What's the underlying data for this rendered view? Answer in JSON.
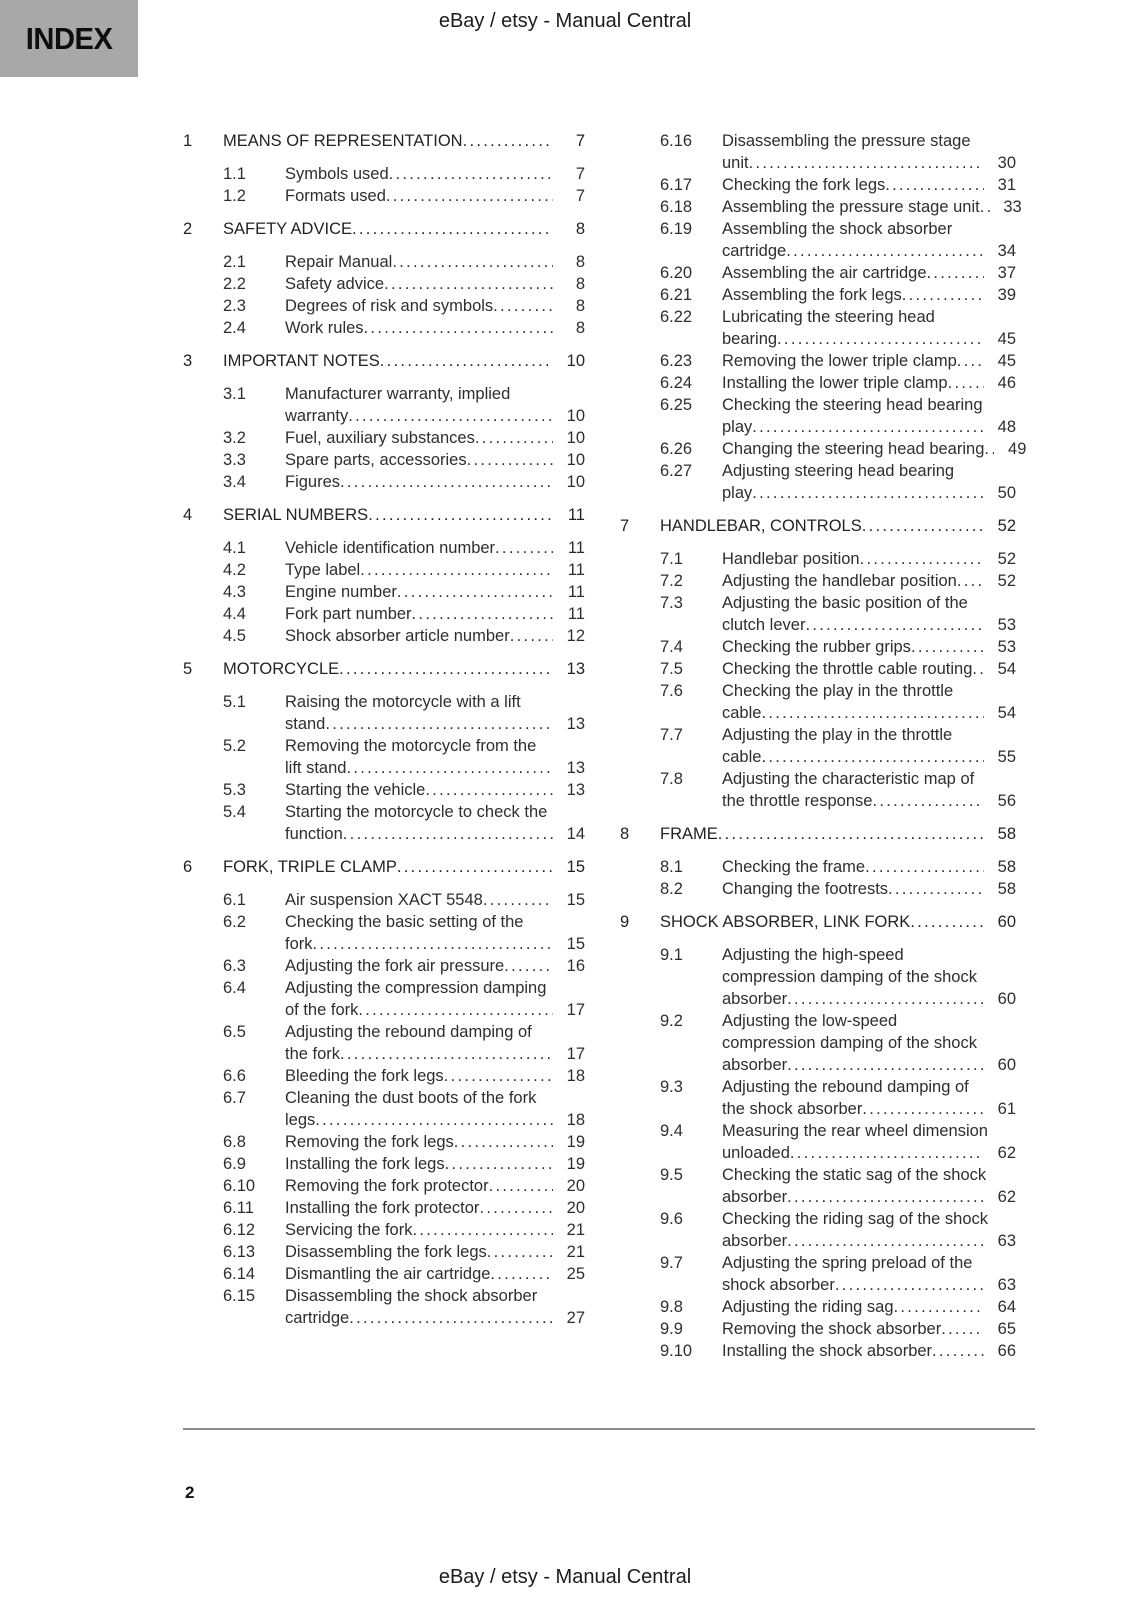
{
  "header": {
    "index_label": "INDEX",
    "title": "eBay / etsy - Manual Central"
  },
  "footer": {
    "title": "eBay / etsy - Manual Central"
  },
  "page": {
    "number": "2"
  },
  "colors": {
    "index_box_bg": "#a8a8a8",
    "body_text": "#2e2e2e",
    "rule": "#8a8a8a"
  },
  "toc": {
    "left_column": [
      {
        "level": "chapter",
        "num": "1",
        "lines": [
          "MEANS OF REPRESENTATION"
        ],
        "page": "7"
      },
      {
        "level": "section",
        "num": "1.1",
        "lines": [
          "Symbols used"
        ],
        "page": "7"
      },
      {
        "level": "section",
        "num": "1.2",
        "lines": [
          "Formats used"
        ],
        "page": "7"
      },
      {
        "level": "chapter",
        "num": "2",
        "lines": [
          "SAFETY ADVICE"
        ],
        "page": "8"
      },
      {
        "level": "section",
        "num": "2.1",
        "lines": [
          "Repair Manual"
        ],
        "page": "8"
      },
      {
        "level": "section",
        "num": "2.2",
        "lines": [
          "Safety advice"
        ],
        "page": "8"
      },
      {
        "level": "section",
        "num": "2.3",
        "lines": [
          "Degrees of risk and symbols"
        ],
        "page": "8"
      },
      {
        "level": "section",
        "num": "2.4",
        "lines": [
          "Work rules"
        ],
        "page": "8"
      },
      {
        "level": "chapter",
        "num": "3",
        "lines": [
          "IMPORTANT NOTES"
        ],
        "page": "10"
      },
      {
        "level": "section",
        "num": "3.1",
        "lines": [
          "Manufacturer warranty, implied",
          "warranty"
        ],
        "page": "10"
      },
      {
        "level": "section",
        "num": "3.2",
        "lines": [
          "Fuel, auxiliary substances"
        ],
        "page": "10"
      },
      {
        "level": "section",
        "num": "3.3",
        "lines": [
          "Spare parts, accessories"
        ],
        "page": "10"
      },
      {
        "level": "section",
        "num": "3.4",
        "lines": [
          "Figures"
        ],
        "page": "10"
      },
      {
        "level": "chapter",
        "num": "4",
        "lines": [
          "SERIAL NUMBERS"
        ],
        "page": "11"
      },
      {
        "level": "section",
        "num": "4.1",
        "lines": [
          "Vehicle identification number"
        ],
        "page": "11"
      },
      {
        "level": "section",
        "num": "4.2",
        "lines": [
          "Type label"
        ],
        "page": "11"
      },
      {
        "level": "section",
        "num": "4.3",
        "lines": [
          "Engine number"
        ],
        "page": "11"
      },
      {
        "level": "section",
        "num": "4.4",
        "lines": [
          "Fork part number"
        ],
        "page": "11"
      },
      {
        "level": "section",
        "num": "4.5",
        "lines": [
          "Shock absorber article number"
        ],
        "page": "12"
      },
      {
        "level": "chapter",
        "num": "5",
        "lines": [
          "MOTORCYCLE"
        ],
        "page": "13"
      },
      {
        "level": "section",
        "num": "5.1",
        "lines": [
          "Raising the motorcycle with a lift",
          "stand"
        ],
        "page": "13"
      },
      {
        "level": "section",
        "num": "5.2",
        "lines": [
          "Removing the motorcycle from the",
          "lift stand"
        ],
        "page": "13"
      },
      {
        "level": "section",
        "num": "5.3",
        "lines": [
          "Starting the vehicle"
        ],
        "page": "13"
      },
      {
        "level": "section",
        "num": "5.4",
        "lines": [
          "Starting the motorcycle to check the",
          "function"
        ],
        "page": "14"
      },
      {
        "level": "chapter",
        "num": "6",
        "lines": [
          "FORK, TRIPLE CLAMP"
        ],
        "page": "15"
      },
      {
        "level": "section",
        "num": "6.1",
        "lines": [
          "Air suspension XACT 5548"
        ],
        "page": "15"
      },
      {
        "level": "section",
        "num": "6.2",
        "lines": [
          "Checking the basic setting of the",
          "fork"
        ],
        "page": "15"
      },
      {
        "level": "section",
        "num": "6.3",
        "lines": [
          "Adjusting the fork air pressure"
        ],
        "page": "16"
      },
      {
        "level": "section",
        "num": "6.4",
        "lines": [
          "Adjusting the compression damping",
          "of the fork"
        ],
        "page": "17"
      },
      {
        "level": "section",
        "num": "6.5",
        "lines": [
          "Adjusting the rebound damping of",
          "the fork"
        ],
        "page": "17"
      },
      {
        "level": "section",
        "num": "6.6",
        "lines": [
          "Bleeding the fork legs"
        ],
        "page": "18"
      },
      {
        "level": "section",
        "num": "6.7",
        "lines": [
          "Cleaning the dust boots of the fork",
          "legs"
        ],
        "page": "18"
      },
      {
        "level": "section",
        "num": "6.8",
        "lines": [
          "Removing the fork legs"
        ],
        "page": "19"
      },
      {
        "level": "section",
        "num": "6.9",
        "lines": [
          "Installing the fork legs"
        ],
        "page": "19"
      },
      {
        "level": "section",
        "num": "6.10",
        "lines": [
          "Removing the fork protector"
        ],
        "page": "20"
      },
      {
        "level": "section",
        "num": "6.11",
        "lines": [
          "Installing the fork protector"
        ],
        "page": "20"
      },
      {
        "level": "section",
        "num": "6.12",
        "lines": [
          "Servicing the fork"
        ],
        "page": "21"
      },
      {
        "level": "section",
        "num": "6.13",
        "lines": [
          "Disassembling the fork legs"
        ],
        "page": "21"
      },
      {
        "level": "section",
        "num": "6.14",
        "lines": [
          "Dismantling the air cartridge"
        ],
        "page": "25"
      },
      {
        "level": "section",
        "num": "6.15",
        "lines": [
          "Disassembling the shock absorber",
          "cartridge"
        ],
        "page": "27"
      }
    ],
    "right_column": [
      {
        "level": "section",
        "num": "6.16",
        "lines": [
          "Disassembling the pressure stage",
          "unit"
        ],
        "page": "30"
      },
      {
        "level": "section",
        "num": "6.17",
        "lines": [
          "Checking the fork legs"
        ],
        "page": "31"
      },
      {
        "level": "section",
        "num": "6.18",
        "lines": [
          "Assembling the pressure stage unit"
        ],
        "page": "33"
      },
      {
        "level": "section",
        "num": "6.19",
        "lines": [
          "Assembling the shock absorber",
          "cartridge"
        ],
        "page": "34"
      },
      {
        "level": "section",
        "num": "6.20",
        "lines": [
          "Assembling the air cartridge"
        ],
        "page": "37"
      },
      {
        "level": "section",
        "num": "6.21",
        "lines": [
          "Assembling the fork legs"
        ],
        "page": "39"
      },
      {
        "level": "section",
        "num": "6.22",
        "lines": [
          "Lubricating the steering head",
          "bearing"
        ],
        "page": "45"
      },
      {
        "level": "section",
        "num": "6.23",
        "lines": [
          "Removing the lower triple clamp"
        ],
        "page": "45"
      },
      {
        "level": "section",
        "num": "6.24",
        "lines": [
          "Installing the lower triple clamp"
        ],
        "page": "46"
      },
      {
        "level": "section",
        "num": "6.25",
        "lines": [
          "Checking the steering head bearing",
          "play"
        ],
        "page": "48"
      },
      {
        "level": "section",
        "num": "6.26",
        "lines": [
          "Changing the steering head bearing"
        ],
        "page": "49"
      },
      {
        "level": "section",
        "num": "6.27",
        "lines": [
          "Adjusting steering head bearing",
          "play"
        ],
        "page": "50"
      },
      {
        "level": "chapter",
        "num": "7",
        "lines": [
          "HANDLEBAR, CONTROLS"
        ],
        "page": "52"
      },
      {
        "level": "section",
        "num": "7.1",
        "lines": [
          "Handlebar position"
        ],
        "page": "52"
      },
      {
        "level": "section",
        "num": "7.2",
        "lines": [
          "Adjusting the handlebar position"
        ],
        "page": "52"
      },
      {
        "level": "section",
        "num": "7.3",
        "lines": [
          "Adjusting the basic position of the",
          "clutch lever"
        ],
        "page": "53"
      },
      {
        "level": "section",
        "num": "7.4",
        "lines": [
          "Checking the rubber grips"
        ],
        "page": "53"
      },
      {
        "level": "section",
        "num": "7.5",
        "lines": [
          "Checking the throttle cable routing"
        ],
        "page": "54"
      },
      {
        "level": "section",
        "num": "7.6",
        "lines": [
          "Checking the play in the throttle",
          "cable"
        ],
        "page": "54"
      },
      {
        "level": "section",
        "num": "7.7",
        "lines": [
          "Adjusting the play in the throttle",
          "cable"
        ],
        "page": "55"
      },
      {
        "level": "section",
        "num": "7.8",
        "lines": [
          "Adjusting the characteristic map of",
          "the throttle response"
        ],
        "page": "56"
      },
      {
        "level": "chapter",
        "num": "8",
        "lines": [
          "FRAME"
        ],
        "page": "58"
      },
      {
        "level": "section",
        "num": "8.1",
        "lines": [
          "Checking the frame"
        ],
        "page": "58"
      },
      {
        "level": "section",
        "num": "8.2",
        "lines": [
          "Changing the footrests"
        ],
        "page": "58"
      },
      {
        "level": "chapter",
        "num": "9",
        "lines": [
          "SHOCK ABSORBER, LINK FORK"
        ],
        "page": "60"
      },
      {
        "level": "section",
        "num": "9.1",
        "lines": [
          "Adjusting the high-speed",
          "compression damping of the shock",
          "absorber"
        ],
        "page": "60"
      },
      {
        "level": "section",
        "num": "9.2",
        "lines": [
          "Adjusting the low-speed",
          "compression damping of the shock",
          "absorber"
        ],
        "page": "60"
      },
      {
        "level": "section",
        "num": "9.3",
        "lines": [
          "Adjusting the rebound damping of",
          "the shock absorber"
        ],
        "page": "61"
      },
      {
        "level": "section",
        "num": "9.4",
        "lines": [
          "Measuring the rear wheel dimension",
          "unloaded"
        ],
        "page": "62"
      },
      {
        "level": "section",
        "num": "9.5",
        "lines": [
          "Checking the static sag of the shock",
          "absorber"
        ],
        "page": "62"
      },
      {
        "level": "section",
        "num": "9.6",
        "lines": [
          "Checking the riding sag of the shock",
          "absorber"
        ],
        "page": "63"
      },
      {
        "level": "section",
        "num": "9.7",
        "lines": [
          "Adjusting the spring preload of the",
          "shock absorber"
        ],
        "page": "63"
      },
      {
        "level": "section",
        "num": "9.8",
        "lines": [
          "Adjusting the riding sag"
        ],
        "page": "64"
      },
      {
        "level": "section",
        "num": "9.9",
        "lines": [
          "Removing the shock absorber"
        ],
        "page": "65"
      },
      {
        "level": "section",
        "num": "9.10",
        "lines": [
          "Installing the shock absorber"
        ],
        "page": "66"
      }
    ]
  }
}
